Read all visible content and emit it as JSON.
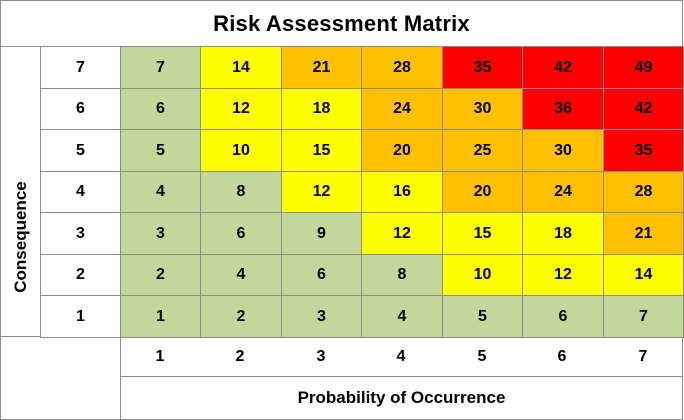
{
  "chart_data": {
    "type": "heatmap",
    "title": "Risk Assessment Matrix",
    "xlabel": "Probability of Occurrence",
    "ylabel": "Consequence",
    "x_ticks": [
      "1",
      "2",
      "3",
      "4",
      "5",
      "6",
      "7"
    ],
    "y_ticks": [
      "7",
      "6",
      "5",
      "4",
      "3",
      "2",
      "1"
    ],
    "colors": {
      "green": "#c4d79b",
      "yellow": "#ffff00",
      "orange": "#ffc000",
      "red": "#ff0000"
    },
    "rows": [
      {
        "consequence": 7,
        "cells": [
          {
            "value": 7,
            "color": "green"
          },
          {
            "value": 14,
            "color": "yellow"
          },
          {
            "value": 21,
            "color": "orange"
          },
          {
            "value": 28,
            "color": "orange"
          },
          {
            "value": 35,
            "color": "red"
          },
          {
            "value": 42,
            "color": "red"
          },
          {
            "value": 49,
            "color": "red"
          }
        ]
      },
      {
        "consequence": 6,
        "cells": [
          {
            "value": 6,
            "color": "green"
          },
          {
            "value": 12,
            "color": "yellow"
          },
          {
            "value": 18,
            "color": "yellow"
          },
          {
            "value": 24,
            "color": "orange"
          },
          {
            "value": 30,
            "color": "orange"
          },
          {
            "value": 36,
            "color": "red"
          },
          {
            "value": 42,
            "color": "red"
          }
        ]
      },
      {
        "consequence": 5,
        "cells": [
          {
            "value": 5,
            "color": "green"
          },
          {
            "value": 10,
            "color": "yellow"
          },
          {
            "value": 15,
            "color": "yellow"
          },
          {
            "value": 20,
            "color": "orange"
          },
          {
            "value": 25,
            "color": "orange"
          },
          {
            "value": 30,
            "color": "orange"
          },
          {
            "value": 35,
            "color": "red"
          }
        ]
      },
      {
        "consequence": 4,
        "cells": [
          {
            "value": 4,
            "color": "green"
          },
          {
            "value": 8,
            "color": "green"
          },
          {
            "value": 12,
            "color": "yellow"
          },
          {
            "value": 16,
            "color": "yellow"
          },
          {
            "value": 20,
            "color": "orange"
          },
          {
            "value": 24,
            "color": "orange"
          },
          {
            "value": 28,
            "color": "orange"
          }
        ]
      },
      {
        "consequence": 3,
        "cells": [
          {
            "value": 3,
            "color": "green"
          },
          {
            "value": 6,
            "color": "green"
          },
          {
            "value": 9,
            "color": "green"
          },
          {
            "value": 12,
            "color": "yellow"
          },
          {
            "value": 15,
            "color": "yellow"
          },
          {
            "value": 18,
            "color": "yellow"
          },
          {
            "value": 21,
            "color": "orange"
          }
        ]
      },
      {
        "consequence": 2,
        "cells": [
          {
            "value": 2,
            "color": "green"
          },
          {
            "value": 4,
            "color": "green"
          },
          {
            "value": 6,
            "color": "green"
          },
          {
            "value": 8,
            "color": "green"
          },
          {
            "value": 10,
            "color": "yellow"
          },
          {
            "value": 12,
            "color": "yellow"
          },
          {
            "value": 14,
            "color": "yellow"
          }
        ]
      },
      {
        "consequence": 1,
        "cells": [
          {
            "value": 1,
            "color": "green"
          },
          {
            "value": 2,
            "color": "green"
          },
          {
            "value": 3,
            "color": "green"
          },
          {
            "value": 4,
            "color": "green"
          },
          {
            "value": 5,
            "color": "green"
          },
          {
            "value": 6,
            "color": "green"
          },
          {
            "value": 7,
            "color": "green"
          }
        ]
      }
    ]
  }
}
